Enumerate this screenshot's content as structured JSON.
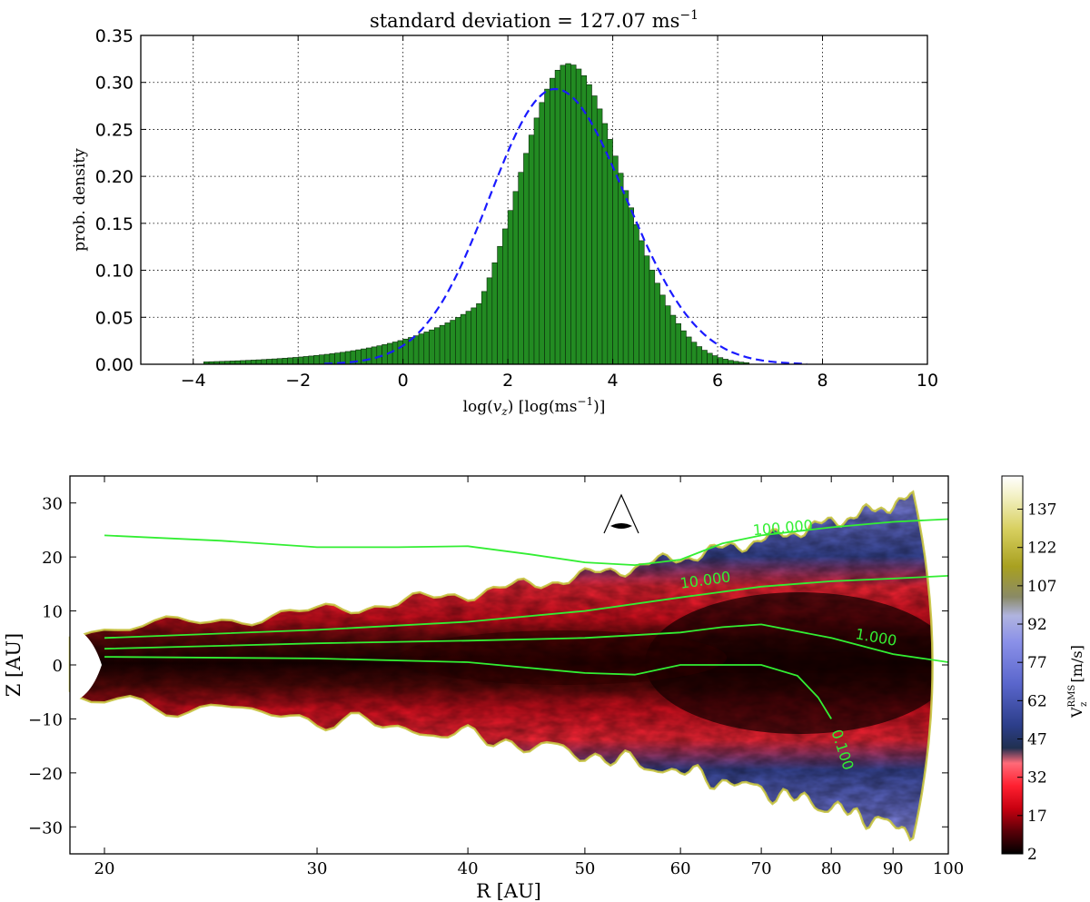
{
  "chart_data": [
    {
      "type": "bar",
      "title_main": "standard deviation = 127.07 ms",
      "title_sup": "−1",
      "xlabel_main": "log(",
      "xlabel_var": "v",
      "xlabel_sub": "z",
      "xlabel_rest": ") [log(ms",
      "xlabel_sup": "−1",
      "xlabel_end": ")]",
      "ylabel": "prob. density",
      "xlim": [
        -5,
        10
      ],
      "ylim": [
        0,
        0.35
      ],
      "xticks": [
        "−4",
        "−2",
        "0",
        "2",
        "4",
        "6",
        "8",
        "10"
      ],
      "xtick_values": [
        -4,
        -2,
        0,
        2,
        4,
        6,
        8,
        10
      ],
      "yticks": [
        "0.00",
        "0.05",
        "0.10",
        "0.15",
        "0.20",
        "0.25",
        "0.30",
        "0.35"
      ],
      "ytick_values": [
        0,
        0.05,
        0.1,
        0.15,
        0.2,
        0.25,
        0.3,
        0.35
      ],
      "grid": true,
      "bar_color": "#228b22",
      "histogram": {
        "peak_x": 3.15,
        "peak_y": 0.32,
        "sigma_left": 0.95,
        "sigma_right": 1.05,
        "tail_start": -3.8,
        "tail_level_at_zero": 0.026,
        "end_x": 6.6,
        "bin_width": 0.1
      },
      "fit_curve": {
        "style": "dashed",
        "color": "#1a1aff",
        "peak_x": 2.9,
        "peak_y": 0.293,
        "sigma_left": 1.25,
        "sigma_right": 1.35,
        "range": [
          -1.5,
          7.7
        ]
      }
    },
    {
      "type": "heatmap",
      "xlabel": "R [AU]",
      "ylabel": "Z [AU]",
      "xticks": [
        "20",
        "30",
        "40",
        "50",
        "60",
        "70",
        "80",
        "90",
        "100"
      ],
      "xtick_values": [
        20,
        30,
        40,
        50,
        60,
        70,
        80,
        90,
        100
      ],
      "x_scale": "log",
      "yticks": [
        "30",
        "20",
        "10",
        "0",
        "−10",
        "−20",
        "−30"
      ],
      "ytick_values": [
        30,
        20,
        10,
        0,
        -10,
        -20,
        -30
      ],
      "ylim": [
        -35,
        35
      ],
      "contour_labels": [
        "100.000",
        "10.000",
        "1.000",
        "0.100"
      ],
      "contour_color": "#33ee33",
      "colorbar": {
        "label_main": "V",
        "label_sup": "RMS",
        "label_sub": "z",
        "label_unit": " [m/s]",
        "ticks": [
          "137",
          "122",
          "107",
          "92",
          "77",
          "62",
          "47",
          "32",
          "17",
          "2"
        ],
        "tick_values": [
          137,
          122,
          107,
          92,
          77,
          62,
          47,
          32,
          17,
          2
        ],
        "range": [
          2,
          150
        ]
      }
    }
  ]
}
